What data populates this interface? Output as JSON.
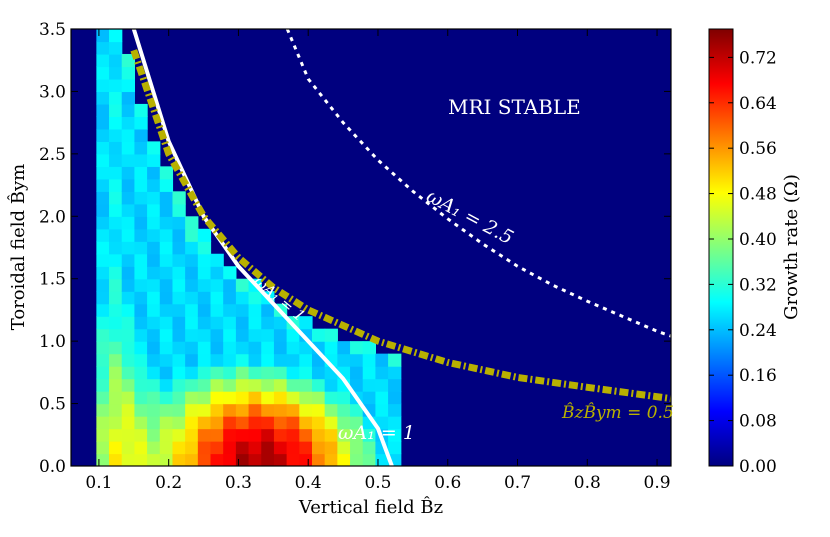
{
  "chart_data": {
    "type": "heatmap",
    "xlabel": "Vertical field B̂z",
    "ylabel": "Toroidal field B̂ym",
    "colorbar_label": "Growth rate (Ω)",
    "xlim": [
      0.06,
      0.92
    ],
    "ylim": [
      0.0,
      3.5
    ],
    "x_ticks": [
      "0.1",
      "0.2",
      "0.3",
      "0.4",
      "0.5",
      "0.6",
      "0.7",
      "0.8",
      "0.9"
    ],
    "y_ticks": [
      "0.0",
      "0.5",
      "1.0",
      "1.5",
      "2.0",
      "2.5",
      "3.0",
      "3.5"
    ],
    "colorbar_ticks": [
      "0.00",
      "0.08",
      "0.16",
      "0.24",
      "0.32",
      "0.40",
      "0.48",
      "0.56",
      "0.64",
      "0.72"
    ],
    "zlim": [
      0.0,
      0.77
    ],
    "colormap": "jet",
    "background_color": "#00007f",
    "grid": {
      "x0": 0.06,
      "dx": 0.01818,
      "y0": 0.0,
      "dy": 0.1,
      "nx": 26,
      "ny": 35,
      "model": "growth = 0.77 * peak(x,y) within MRI-unstable region below B̂z·B̂ym ≈ 0.5"
    },
    "annotations": {
      "stable_region": "MRI STABLE",
      "curve_omega1": "ωA₁ = 1",
      "curve_omega1_partial": "ωA₁ = 1",
      "curve_omega25": "ωA₁ = 2.5",
      "curve_product": "B̂zB̂ym = 0.5"
    },
    "curves": {
      "omega_1": {
        "style": "solid",
        "color": "#ffffff",
        "x": [
          0.15,
          0.2,
          0.25,
          0.3,
          0.35,
          0.4,
          0.45,
          0.5,
          0.52
        ],
        "y": [
          3.5,
          2.6,
          2.0,
          1.6,
          1.3,
          1.0,
          0.7,
          0.3,
          0.0
        ]
      },
      "omega_2_5": {
        "style": "dotted",
        "color": "#ffffff",
        "x": [
          0.37,
          0.4,
          0.45,
          0.5,
          0.55,
          0.6,
          0.65,
          0.7,
          0.75,
          0.8,
          0.85,
          0.9,
          0.92
        ],
        "y": [
          3.5,
          3.1,
          2.75,
          2.45,
          2.2,
          1.98,
          1.78,
          1.6,
          1.45,
          1.32,
          1.2,
          1.08,
          1.04
        ]
      },
      "product_0_5": {
        "style": "dashdot",
        "color": "#b8b000",
        "x": [
          0.15,
          0.2,
          0.25,
          0.3,
          0.35,
          0.4,
          0.5,
          0.6,
          0.7,
          0.8,
          0.92
        ],
        "y": [
          3.33,
          2.5,
          2.0,
          1.67,
          1.43,
          1.25,
          1.0,
          0.83,
          0.71,
          0.63,
          0.54
        ]
      }
    }
  }
}
